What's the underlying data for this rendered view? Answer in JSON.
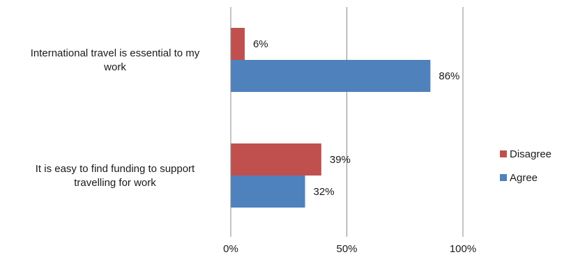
{
  "chart_data": {
    "type": "bar",
    "orientation": "horizontal",
    "categories": [
      [
        "International travel is essential to my",
        "work"
      ],
      [
        "It is easy to find funding to support",
        "travelling for work"
      ]
    ],
    "series": [
      {
        "name": "Disagree",
        "values": [
          6,
          39
        ],
        "labels": [
          "6%",
          "39%"
        ],
        "color": "#C0504D"
      },
      {
        "name": "Agree",
        "values": [
          86,
          32
        ],
        "labels": [
          "86%",
          "32%"
        ],
        "color": "#4F81BD"
      }
    ],
    "xlim": [
      0,
      100
    ],
    "ticks": [
      {
        "value": 0,
        "label": "0%"
      },
      {
        "value": 50,
        "label": "50%"
      },
      {
        "value": 100,
        "label": "100%"
      }
    ],
    "grid": true,
    "legend_position": "right",
    "legend_order": [
      0,
      1
    ]
  }
}
